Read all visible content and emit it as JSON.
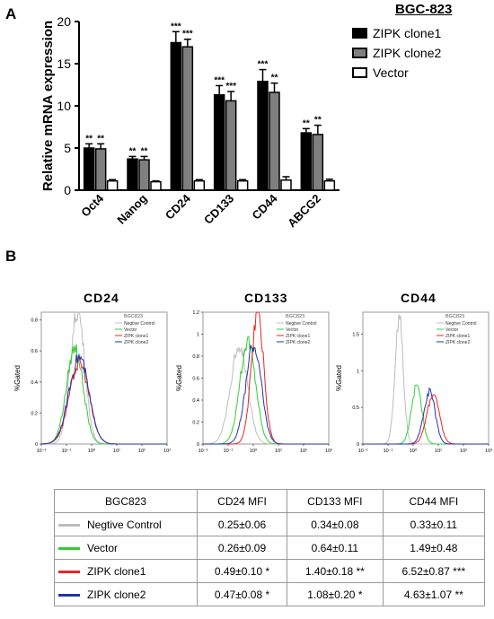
{
  "panel_a_label": "A",
  "panel_b_label": "B",
  "legend": {
    "title": "BGC-823",
    "items": [
      {
        "label": "ZIPK clone1",
        "color": "#000000"
      },
      {
        "label": "ZIPK clone2",
        "color": "#7f7f7f"
      },
      {
        "label": "Vector",
        "color": "#ffffff"
      }
    ]
  },
  "chart_data": [
    {
      "type": "bar",
      "ylabel": "Relative mRNA expression",
      "ylim": [
        0,
        20
      ],
      "yticks": [
        0,
        5,
        10,
        15,
        20
      ],
      "categories": [
        "Oct4",
        "Nanog",
        "CD24",
        "CD133",
        "CD44",
        "ABCG2"
      ],
      "series": [
        {
          "name": "ZIPK clone1",
          "color": "#000000",
          "values": [
            5.0,
            3.7,
            17.5,
            11.3,
            12.9,
            6.8
          ],
          "errors": [
            0.5,
            0.3,
            1.3,
            1.1,
            1.4,
            0.5
          ],
          "sig": [
            "**",
            "**",
            "***",
            "***",
            "***",
            "**"
          ]
        },
        {
          "name": "ZIPK clone2",
          "color": "#7f7f7f",
          "values": [
            4.9,
            3.6,
            17.0,
            10.6,
            11.6,
            6.6
          ],
          "errors": [
            0.6,
            0.4,
            0.9,
            1.1,
            1.1,
            1.1
          ],
          "sig": [
            "**",
            "**",
            "***",
            "***",
            "**",
            "**"
          ]
        },
        {
          "name": "Vector",
          "color": "#ffffff",
          "values": [
            1.1,
            1.0,
            1.1,
            1.1,
            1.2,
            1.1
          ],
          "errors": [
            0.15,
            0.1,
            0.15,
            0.15,
            0.4,
            0.2
          ],
          "sig": [
            "",
            "",
            "",
            "",
            "",
            ""
          ]
        }
      ]
    },
    {
      "type": "line",
      "title": "CD24",
      "ylabel": "%Gated",
      "xscale": "log",
      "xlim": [
        0.01,
        1000
      ],
      "ylim": [
        0,
        0.85
      ],
      "yticks": [
        "0",
        "0.2",
        "0.4",
        "0.6",
        "0.8"
      ],
      "xtick_labels": [
        "10⁻²",
        "10⁻¹",
        "10⁰",
        "10¹",
        "10²",
        "10³"
      ],
      "legend_title": "BGC823",
      "series": [
        {
          "name": "Negtive Control",
          "color": "#bdbdbd",
          "peak_x": 0.28,
          "peak_y": 0.86,
          "width": 0.28
        },
        {
          "name": "Vector",
          "color": "#33cc33",
          "peak_x": 0.22,
          "peak_y": 0.62,
          "width": 0.32
        },
        {
          "name": "ZIPK clone1",
          "color": "#ee2222",
          "peak_x": 0.33,
          "peak_y": 0.52,
          "width": 0.38
        },
        {
          "name": "ZIPK clone2",
          "color": "#2233aa",
          "peak_x": 0.32,
          "peak_y": 0.56,
          "width": 0.38
        }
      ]
    },
    {
      "type": "line",
      "title": "CD133",
      "ylabel": "%Gated",
      "xscale": "log",
      "xlim": [
        0.01,
        1000
      ],
      "ylim": [
        0,
        1.2
      ],
      "yticks": [
        "0",
        "0.2",
        "0.4",
        "0.6",
        "0.8",
        "1",
        "1.2"
      ],
      "xtick_labels": [
        "10⁻²",
        "10⁻¹",
        "10⁰",
        "10¹",
        "10²",
        "10³"
      ],
      "legend_title": "BGC823",
      "series": [
        {
          "name": "Negtive Control",
          "color": "#bdbdbd",
          "peak_x": 0.28,
          "peak_y": 0.9,
          "width": 0.33
        },
        {
          "name": "Vector",
          "color": "#33cc33",
          "peak_x": 0.62,
          "peak_y": 0.95,
          "width": 0.3
        },
        {
          "name": "ZIPK clone1",
          "color": "#ee2222",
          "peak_x": 1.5,
          "peak_y": 1.18,
          "width": 0.24
        },
        {
          "name": "ZIPK clone2",
          "color": "#2233aa",
          "peak_x": 1.05,
          "peak_y": 0.9,
          "width": 0.3
        }
      ]
    },
    {
      "type": "line",
      "title": "CD44",
      "ylabel": "%Gated",
      "xscale": "log",
      "xlim": [
        0.01,
        1000
      ],
      "ylim": [
        0,
        1.8
      ],
      "yticks": [
        "0",
        "0.5",
        "1",
        "1.5"
      ],
      "xtick_labels": [
        "10⁻²",
        "10⁻¹",
        "10⁰",
        "10¹",
        "10²",
        "10³"
      ],
      "legend_title": "BGC823",
      "series": [
        {
          "name": "Negtive Control",
          "color": "#bdbdbd",
          "peak_x": 0.28,
          "peak_y": 1.72,
          "width": 0.16
        },
        {
          "name": "Vector",
          "color": "#33cc33",
          "peak_x": 1.4,
          "peak_y": 0.8,
          "width": 0.2
        },
        {
          "name": "ZIPK clone1",
          "color": "#ee2222",
          "peak_x": 6.3,
          "peak_y": 0.68,
          "width": 0.24
        },
        {
          "name": "ZIPK clone2",
          "color": "#2233aa",
          "peak_x": 4.5,
          "peak_y": 0.72,
          "width": 0.22
        }
      ]
    },
    {
      "type": "table",
      "headers": [
        "BGC823",
        "CD24 MFI",
        "CD133 MFI",
        "CD44 MFI"
      ],
      "rows": [
        {
          "label": "Negtive Control",
          "color": "#bdbdbd",
          "cells": [
            "0.25±0.06",
            "0.34±0.08",
            "0.33±0.11"
          ]
        },
        {
          "label": "Vector",
          "color": "#33cc33",
          "cells": [
            "0.26±0.09",
            "0.64±0.11",
            "1.49±0.48"
          ]
        },
        {
          "label": "ZIPK clone1",
          "color": "#ee2222",
          "cells": [
            "0.49±0.10 *",
            "1.40±0.18 **",
            "6.52±0.87 ***"
          ]
        },
        {
          "label": "ZIPK clone2",
          "color": "#2233aa",
          "cells": [
            "0.47±0.08 *",
            "1.08±0.20 *",
            "4.63±1.07 **"
          ]
        }
      ]
    }
  ]
}
